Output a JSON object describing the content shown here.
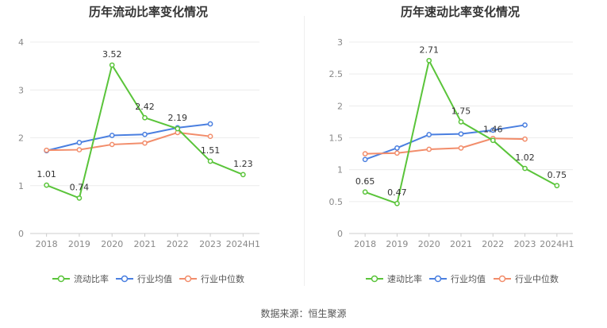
{
  "source_text": "数据来源：恒生聚源",
  "chart_data": [
    {
      "type": "line",
      "title": "历年流动比率变化情况",
      "categories": [
        "2018",
        "2019",
        "2020",
        "2021",
        "2022",
        "2023",
        "2024H1"
      ],
      "ylim": [
        0,
        4
      ],
      "yticks": [
        "0",
        "1",
        "2",
        "3",
        "4"
      ],
      "grid": true,
      "legend_position": "bottom",
      "series": [
        {
          "name": "流动比率",
          "color": "#5ac43a",
          "values": [
            1.01,
            0.74,
            3.52,
            2.42,
            2.19,
            1.51,
            1.23
          ],
          "labels": [
            "1.01",
            "0.74",
            "3.52",
            "2.42",
            "2.19",
            "1.51",
            "1.23"
          ]
        },
        {
          "name": "行业均值",
          "color": "#4a7fe0",
          "values": [
            1.73,
            1.9,
            2.05,
            2.07,
            2.21,
            2.29,
            null
          ]
        },
        {
          "name": "行业中位数",
          "color": "#f28d6b",
          "values": [
            1.74,
            1.75,
            1.86,
            1.89,
            2.11,
            2.03,
            null
          ]
        }
      ]
    },
    {
      "type": "line",
      "title": "历年速动比率变化情况",
      "categories": [
        "2018",
        "2019",
        "2020",
        "2021",
        "2022",
        "2023",
        "2024H1"
      ],
      "ylim": [
        0,
        3
      ],
      "yticks": [
        "0",
        "0.5",
        "1",
        "1.5",
        "2",
        "2.5",
        "3"
      ],
      "grid": true,
      "legend_position": "bottom",
      "series": [
        {
          "name": "速动比率",
          "color": "#5ac43a",
          "values": [
            0.65,
            0.47,
            2.71,
            1.75,
            1.46,
            1.02,
            0.75
          ],
          "labels": [
            "0.65",
            "0.47",
            "2.71",
            "1.75",
            "1.46",
            "1.02",
            "0.75"
          ]
        },
        {
          "name": "行业均值",
          "color": "#4a7fe0",
          "values": [
            1.16,
            1.34,
            1.55,
            1.56,
            1.62,
            1.7,
            null
          ]
        },
        {
          "name": "行业中位数",
          "color": "#f28d6b",
          "values": [
            1.25,
            1.26,
            1.32,
            1.34,
            1.49,
            1.48,
            null
          ]
        }
      ]
    }
  ]
}
